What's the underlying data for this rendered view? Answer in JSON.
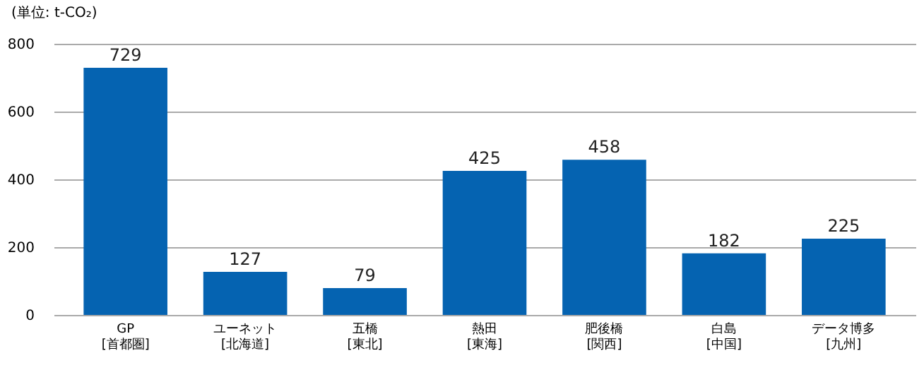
{
  "chart_data": {
    "type": "bar",
    "title": "(単位: t-CO₂)",
    "categories": [
      "GP\n[首都圏]",
      "ユーネット\n[北海道]",
      "五橋\n[東北]",
      "熱田\n[東海]",
      "肥後橋\n[関西]",
      "白島\n[中国]",
      "データ博多\n[九州]"
    ],
    "values": [
      729,
      127,
      79,
      425,
      458,
      182,
      225
    ],
    "color": "#0563b1",
    "ylim": [
      0,
      800
    ],
    "yticks": [
      0,
      200,
      400,
      600,
      800
    ],
    "grid": "y",
    "data_labels": true
  }
}
